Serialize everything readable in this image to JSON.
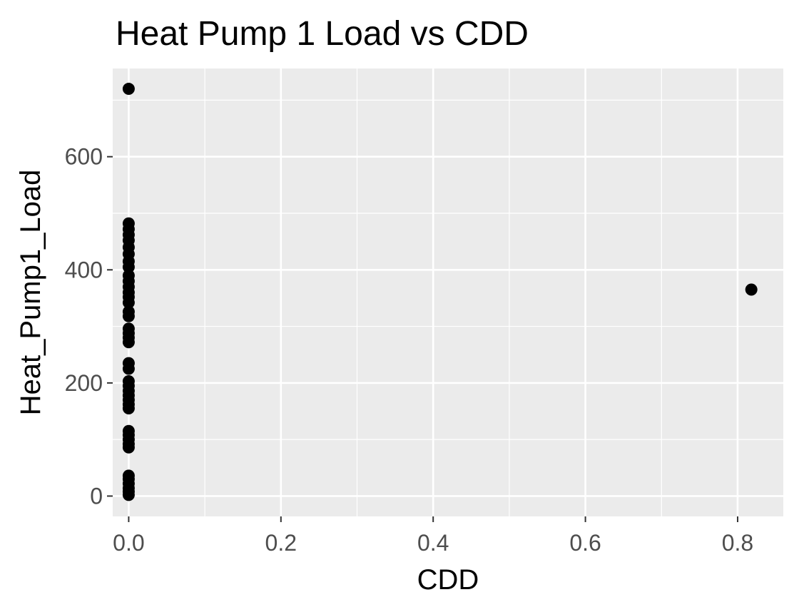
{
  "chart_data": {
    "type": "scatter",
    "title": "Heat Pump 1 Load vs CDD",
    "xlabel": "CDD",
    "ylabel": "Heat_Pump1_Load",
    "xlim": [
      -0.021,
      0.86
    ],
    "ylim": [
      -36,
      756
    ],
    "x_ticks": [
      0.0,
      0.2,
      0.4,
      0.6,
      0.8
    ],
    "x_tick_labels": [
      "0.0",
      "0.2",
      "0.4",
      "0.6",
      "0.8"
    ],
    "y_ticks": [
      0,
      200,
      400,
      600
    ],
    "y_tick_labels": [
      "0",
      "200",
      "400",
      "600"
    ],
    "grid": true,
    "legend": "none",
    "panel_color": "#ebebeb",
    "grid_color": "#ffffff",
    "point_color": "#000000",
    "points": [
      {
        "x": 0.0,
        "y": 2
      },
      {
        "x": 0.0,
        "y": 8
      },
      {
        "x": 0.0,
        "y": 14
      },
      {
        "x": 0.0,
        "y": 22
      },
      {
        "x": 0.0,
        "y": 30
      },
      {
        "x": 0.0,
        "y": 36
      },
      {
        "x": 0.0,
        "y": 86
      },
      {
        "x": 0.0,
        "y": 92
      },
      {
        "x": 0.0,
        "y": 100
      },
      {
        "x": 0.0,
        "y": 108
      },
      {
        "x": 0.0,
        "y": 115
      },
      {
        "x": 0.0,
        "y": 155
      },
      {
        "x": 0.0,
        "y": 162
      },
      {
        "x": 0.0,
        "y": 170
      },
      {
        "x": 0.0,
        "y": 178
      },
      {
        "x": 0.0,
        "y": 186
      },
      {
        "x": 0.0,
        "y": 195
      },
      {
        "x": 0.0,
        "y": 203
      },
      {
        "x": 0.0,
        "y": 225
      },
      {
        "x": 0.0,
        "y": 235
      },
      {
        "x": 0.0,
        "y": 272
      },
      {
        "x": 0.0,
        "y": 280
      },
      {
        "x": 0.0,
        "y": 288
      },
      {
        "x": 0.0,
        "y": 296
      },
      {
        "x": 0.0,
        "y": 318
      },
      {
        "x": 0.0,
        "y": 326
      },
      {
        "x": 0.0,
        "y": 342
      },
      {
        "x": 0.0,
        "y": 352
      },
      {
        "x": 0.0,
        "y": 360
      },
      {
        "x": 0.0,
        "y": 370
      },
      {
        "x": 0.0,
        "y": 380
      },
      {
        "x": 0.0,
        "y": 390
      },
      {
        "x": 0.0,
        "y": 405
      },
      {
        "x": 0.0,
        "y": 415
      },
      {
        "x": 0.0,
        "y": 428
      },
      {
        "x": 0.0,
        "y": 440
      },
      {
        "x": 0.0,
        "y": 452
      },
      {
        "x": 0.0,
        "y": 462
      },
      {
        "x": 0.0,
        "y": 472
      },
      {
        "x": 0.0,
        "y": 482
      },
      {
        "x": 0.0,
        "y": 720
      },
      {
        "x": 0.818,
        "y": 365
      }
    ]
  }
}
